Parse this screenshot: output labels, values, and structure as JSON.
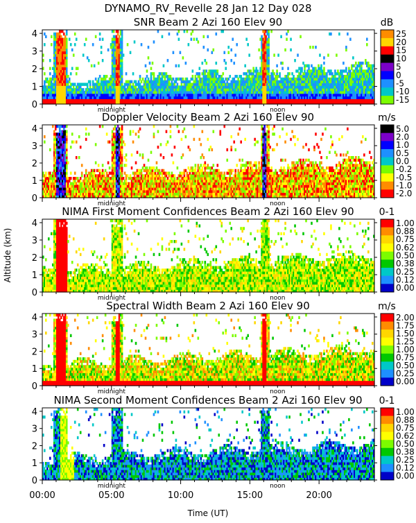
{
  "figure": {
    "title": "DYNAMO_RV_Revelle  28 Jan 12 Day 028",
    "ylabel": "Altitude (km)",
    "xlabel": "Time (UT)",
    "xticks": [
      "00:00",
      "05:00",
      "10:00",
      "15:00",
      "20:00"
    ],
    "markers": {
      "midnight": "midnight",
      "noon": "noon"
    }
  },
  "chart_data": [
    {
      "type": "heatmap",
      "title": "SNR Beam 2 Azi 160 Elev 90",
      "unit": "dB",
      "x_range_hours": [
        0,
        24
      ],
      "ylim": [
        0,
        4.2
      ],
      "y_ticks": [
        0,
        1,
        2,
        3,
        4
      ],
      "colorbar_labels": [
        "25",
        "20",
        "15",
        "10",
        "5",
        "0",
        "-5",
        "-10",
        "-15"
      ],
      "colorbar_colors": [
        "#ff8c00",
        "#ffd700",
        "#ff0000",
        "#000000",
        "#7b00c8",
        "#0000ff",
        "#1e90ff",
        "#00c8c8",
        "#7cfc00"
      ]
    },
    {
      "type": "heatmap",
      "title": "Doppler Velocity Beam 2 Azi 160 Elev 90",
      "unit": "m/s",
      "x_range_hours": [
        0,
        24
      ],
      "ylim": [
        0,
        4.2
      ],
      "y_ticks": [
        0,
        1,
        2,
        3,
        4
      ],
      "colorbar_labels": [
        "5.0",
        "2.0",
        "1.0",
        "0.5",
        "0.0",
        "-0.2",
        "-0.5",
        "-1.0",
        "-2.0"
      ],
      "colorbar_colors": [
        "#000000",
        "#7b00c8",
        "#0000ff",
        "#1e90ff",
        "#00c8c8",
        "#7cfc00",
        "#ffff00",
        "#ff8c00",
        "#ff0000"
      ]
    },
    {
      "type": "heatmap",
      "title": "NIMA First Moment Confidences Beam 2 Azi 160 Elev 90",
      "unit": "0-1",
      "x_range_hours": [
        0,
        24
      ],
      "ylim": [
        0,
        4.2
      ],
      "y_ticks": [
        0,
        1,
        2,
        3,
        4
      ],
      "colorbar_labels": [
        "1.00",
        "0.88",
        "0.75",
        "0.62",
        "0.50",
        "0.38",
        "0.25",
        "0.12",
        "0.00"
      ],
      "colorbar_colors": [
        "#ff0000",
        "#ff8c00",
        "#ffd700",
        "#ffff00",
        "#7cfc00",
        "#00c800",
        "#00c8c8",
        "#1e90ff",
        "#0000c8"
      ]
    },
    {
      "type": "heatmap",
      "title": "Spectral Width Beam 2 Azi 160 Elev 90",
      "unit": "m/s",
      "x_range_hours": [
        0,
        24
      ],
      "ylim": [
        0,
        4.2
      ],
      "y_ticks": [
        0,
        1,
        2,
        3,
        4
      ],
      "colorbar_labels": [
        "2.00",
        "1.75",
        "1.50",
        "1.25",
        "1.00",
        "0.75",
        "0.50",
        "0.25",
        "0.00"
      ],
      "colorbar_colors": [
        "#ff0000",
        "#ff8c00",
        "#ffd700",
        "#ffff00",
        "#7cfc00",
        "#00c800",
        "#00c8c8",
        "#1e90ff",
        "#0000c8"
      ]
    },
    {
      "type": "heatmap",
      "title": "NIMA Second Moment Confidences Beam 2 Azi 160 Elev 90",
      "unit": "0-1",
      "x_range_hours": [
        0,
        24
      ],
      "ylim": [
        0,
        4.2
      ],
      "y_ticks": [
        0,
        1,
        2,
        3,
        4
      ],
      "colorbar_labels": [
        "1.00",
        "0.88",
        "0.75",
        "0.62",
        "0.50",
        "0.38",
        "0.25",
        "0.12",
        "0.00"
      ],
      "colorbar_colors": [
        "#ff0000",
        "#ff8c00",
        "#ffd700",
        "#ffff00",
        "#7cfc00",
        "#00c800",
        "#00c8c8",
        "#1e90ff",
        "#0000c8"
      ]
    }
  ]
}
